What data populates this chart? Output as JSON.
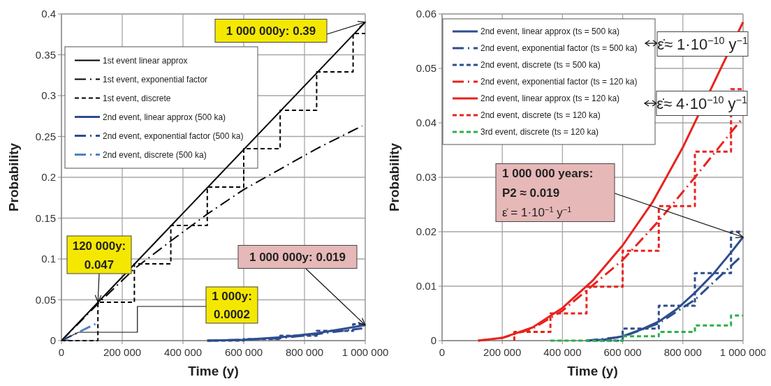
{
  "chart_data": [
    {
      "type": "line",
      "xlabel": "Time (y)",
      "ylabel": "Probability",
      "xlim": [
        0,
        1000000
      ],
      "ylim": [
        0,
        0.4
      ],
      "xticks": [
        0,
        {
          "value": 200000,
          "label": "200 000"
        },
        {
          "value": 400000,
          "label": "400 000"
        },
        {
          "value": 600000,
          "label": "600 000"
        },
        {
          "value": 800000,
          "label": "800 000"
        },
        {
          "value": 1000000,
          "label": "1 000 000"
        }
      ],
      "yticks": [
        0,
        0.05,
        0.1,
        0.15,
        0.2,
        0.25,
        0.3,
        0.35,
        0.4
      ],
      "grid": true,
      "legend": "top left",
      "marker": "none",
      "series": [
        {
          "name": "1st event linear approx",
          "color": "#000000",
          "line_style": "solid",
          "x": [
            0,
            1000000
          ],
          "values": [
            0,
            0.39
          ]
        },
        {
          "name": "1st event, exponential factor",
          "color": "#000000",
          "line_style": "dashed",
          "x": [
            0,
            120000,
            240000,
            360000,
            480000,
            600000,
            720000,
            840000,
            990000
          ],
          "values": [
            0,
            0.045,
            0.088,
            0.122,
            0.155,
            0.185,
            0.21,
            0.235,
            0.263
          ]
        },
        {
          "name": "1st event, discrete",
          "type": "step",
          "color": "#000000",
          "line_style": "dashed",
          "x": [
            0,
            120000,
            240000,
            360000,
            480000,
            600000,
            720000,
            840000,
            960000,
            1000000
          ],
          "values": [
            0,
            0.047,
            0.094,
            0.141,
            0.188,
            0.235,
            0.282,
            0.329,
            0.376,
            0.376
          ]
        },
        {
          "name": "2nd event, linear approx (500 ka)",
          "color": "#2e4d8f",
          "line_style": "solid",
          "x": [
            480000,
            600000,
            720000,
            840000,
            1000000
          ],
          "values": [
            0,
            0.001,
            0.004,
            0.009,
            0.019
          ]
        },
        {
          "name": "2nd event, exponential factor (500 ka)",
          "color": "#2e4d8f",
          "line_style": "dashed",
          "x": [
            480000,
            600000,
            720000,
            840000,
            990000
          ],
          "values": [
            0,
            0.001,
            0.003,
            0.008,
            0.015
          ]
        },
        {
          "name": "2nd event, discrete (500 ka)",
          "color": "#4f81bd",
          "line_style": "dashed",
          "x": [
            0,
            115000
          ],
          "values": [
            0,
            0.021
          ]
        },
        {
          "type": "step",
          "color": "#2e4d8f",
          "line_style": "dashed",
          "x": [
            480000,
            600000,
            720000,
            840000,
            960000,
            1000000
          ],
          "values": [
            0,
            0.002,
            0.006,
            0.012,
            0.02,
            0.02
          ]
        }
      ],
      "annotations": [
        {
          "text": "1 000 000y: 0.39",
          "x": 1000000,
          "y": 0.39
        },
        {
          "text": "120 000y:\n0.047",
          "x": 120000,
          "y": 0.047
        },
        {
          "text": "1 000y:\n0.0002",
          "x": 1000,
          "y": 0.0002
        },
        {
          "text": "1 000 000y: 0.019",
          "x": 1000000,
          "y": 0.019
        }
      ]
    },
    {
      "type": "line",
      "xlabel": "Time (y)",
      "ylabel": "Probability",
      "xlim": [
        0,
        1000000
      ],
      "ylim": [
        0,
        0.06
      ],
      "xticks": [
        0,
        {
          "value": 200000,
          "label": "200 000"
        },
        {
          "value": 400000,
          "label": "400 000"
        },
        {
          "value": 600000,
          "label": "600 000"
        },
        {
          "value": 800000,
          "label": "800 000"
        },
        {
          "value": 1000000,
          "label": "1 000 000"
        }
      ],
      "yticks": [
        0,
        0.01,
        0.02,
        0.03,
        0.04,
        0.05,
        0.06
      ],
      "grid": true,
      "legend": "top left",
      "marker": "none",
      "series": [
        {
          "name": "2nd event, linear approx (ts = 500 ka)",
          "color": "#2e4d8f",
          "line_style": "solid",
          "x": [
            480000,
            540000,
            600000,
            660000,
            720000,
            780000,
            840000,
            900000,
            960000,
            1000000
          ],
          "values": [
            0,
            0.0002,
            0.0008,
            0.002,
            0.0035,
            0.0058,
            0.0088,
            0.0122,
            0.0162,
            0.019
          ]
        },
        {
          "name": "2nd event, exponential factor (ts = 500 ka)",
          "color": "#2e4d8f",
          "line_style": "dashed",
          "x": [
            480000,
            600000,
            720000,
            840000,
            990000
          ],
          "values": [
            0,
            0.0007,
            0.0032,
            0.0075,
            0.0153
          ]
        },
        {
          "name": "2nd event, discrete (ts = 500 ka)",
          "type": "step",
          "color": "#2e4d8f",
          "line_style": "dashed",
          "x": [
            480000,
            600000,
            720000,
            840000,
            960000,
            1000000
          ],
          "values": [
            0,
            0.0022,
            0.0064,
            0.0124,
            0.02,
            0.02
          ]
        },
        {
          "name": "2nd event, exponential factor (ts = 120 ka)",
          "color": "#e8231f",
          "line_style": "dashed",
          "x": [
            120000,
            200000,
            300000,
            400000,
            480000,
            600000,
            720000,
            840000,
            1000000
          ],
          "values": [
            0,
            0.0005,
            0.0022,
            0.0055,
            0.0092,
            0.0148,
            0.022,
            0.03,
            0.041
          ]
        },
        {
          "name": "2nd event, linear approx (ts = 120 ka)",
          "color": "#e8231f",
          "line_style": "solid",
          "x": [
            120000,
            200000,
            300000,
            400000,
            500000,
            600000,
            700000,
            800000,
            900000,
            1000000
          ],
          "values": [
            0,
            0.0005,
            0.0024,
            0.006,
            0.011,
            0.0175,
            0.0255,
            0.0355,
            0.047,
            0.0585
          ]
        },
        {
          "name": "2nd event, discrete (ts = 120 ka)",
          "type": "step",
          "color": "#e8231f",
          "line_style": "dashed",
          "x": [
            240000,
            240000,
            360000,
            480000,
            600000,
            720000,
            840000,
            960000,
            1000000
          ],
          "values": [
            0,
            0.0016,
            0.005,
            0.0099,
            0.0165,
            0.0247,
            0.0347,
            0.0462,
            0.0462
          ]
        },
        {
          "name": "3rd event, discrete (ts = 120 ka)",
          "type": "step",
          "color": "#2bae4a",
          "line_style": "dashed",
          "x": [
            360000,
            600000,
            720000,
            840000,
            960000,
            1000000
          ],
          "values": [
            0,
            0.0008,
            0.0016,
            0.0028,
            0.0046,
            0.0046
          ]
        }
      ],
      "annotations": [
        "ε̇≈ 1·10$^{−10}$ y$^{−1}$",
        "ε̇≈ 4·10$^{−10}$ y$^{−1}$",
        {
          "text": "1 000 000 years:\nP2 ≈ 0.019\nε̇ = 1·10$^{−1}$ y$^{−1}$",
          "x": 1000000,
          "y": 0.019
        }
      ]
    }
  ]
}
